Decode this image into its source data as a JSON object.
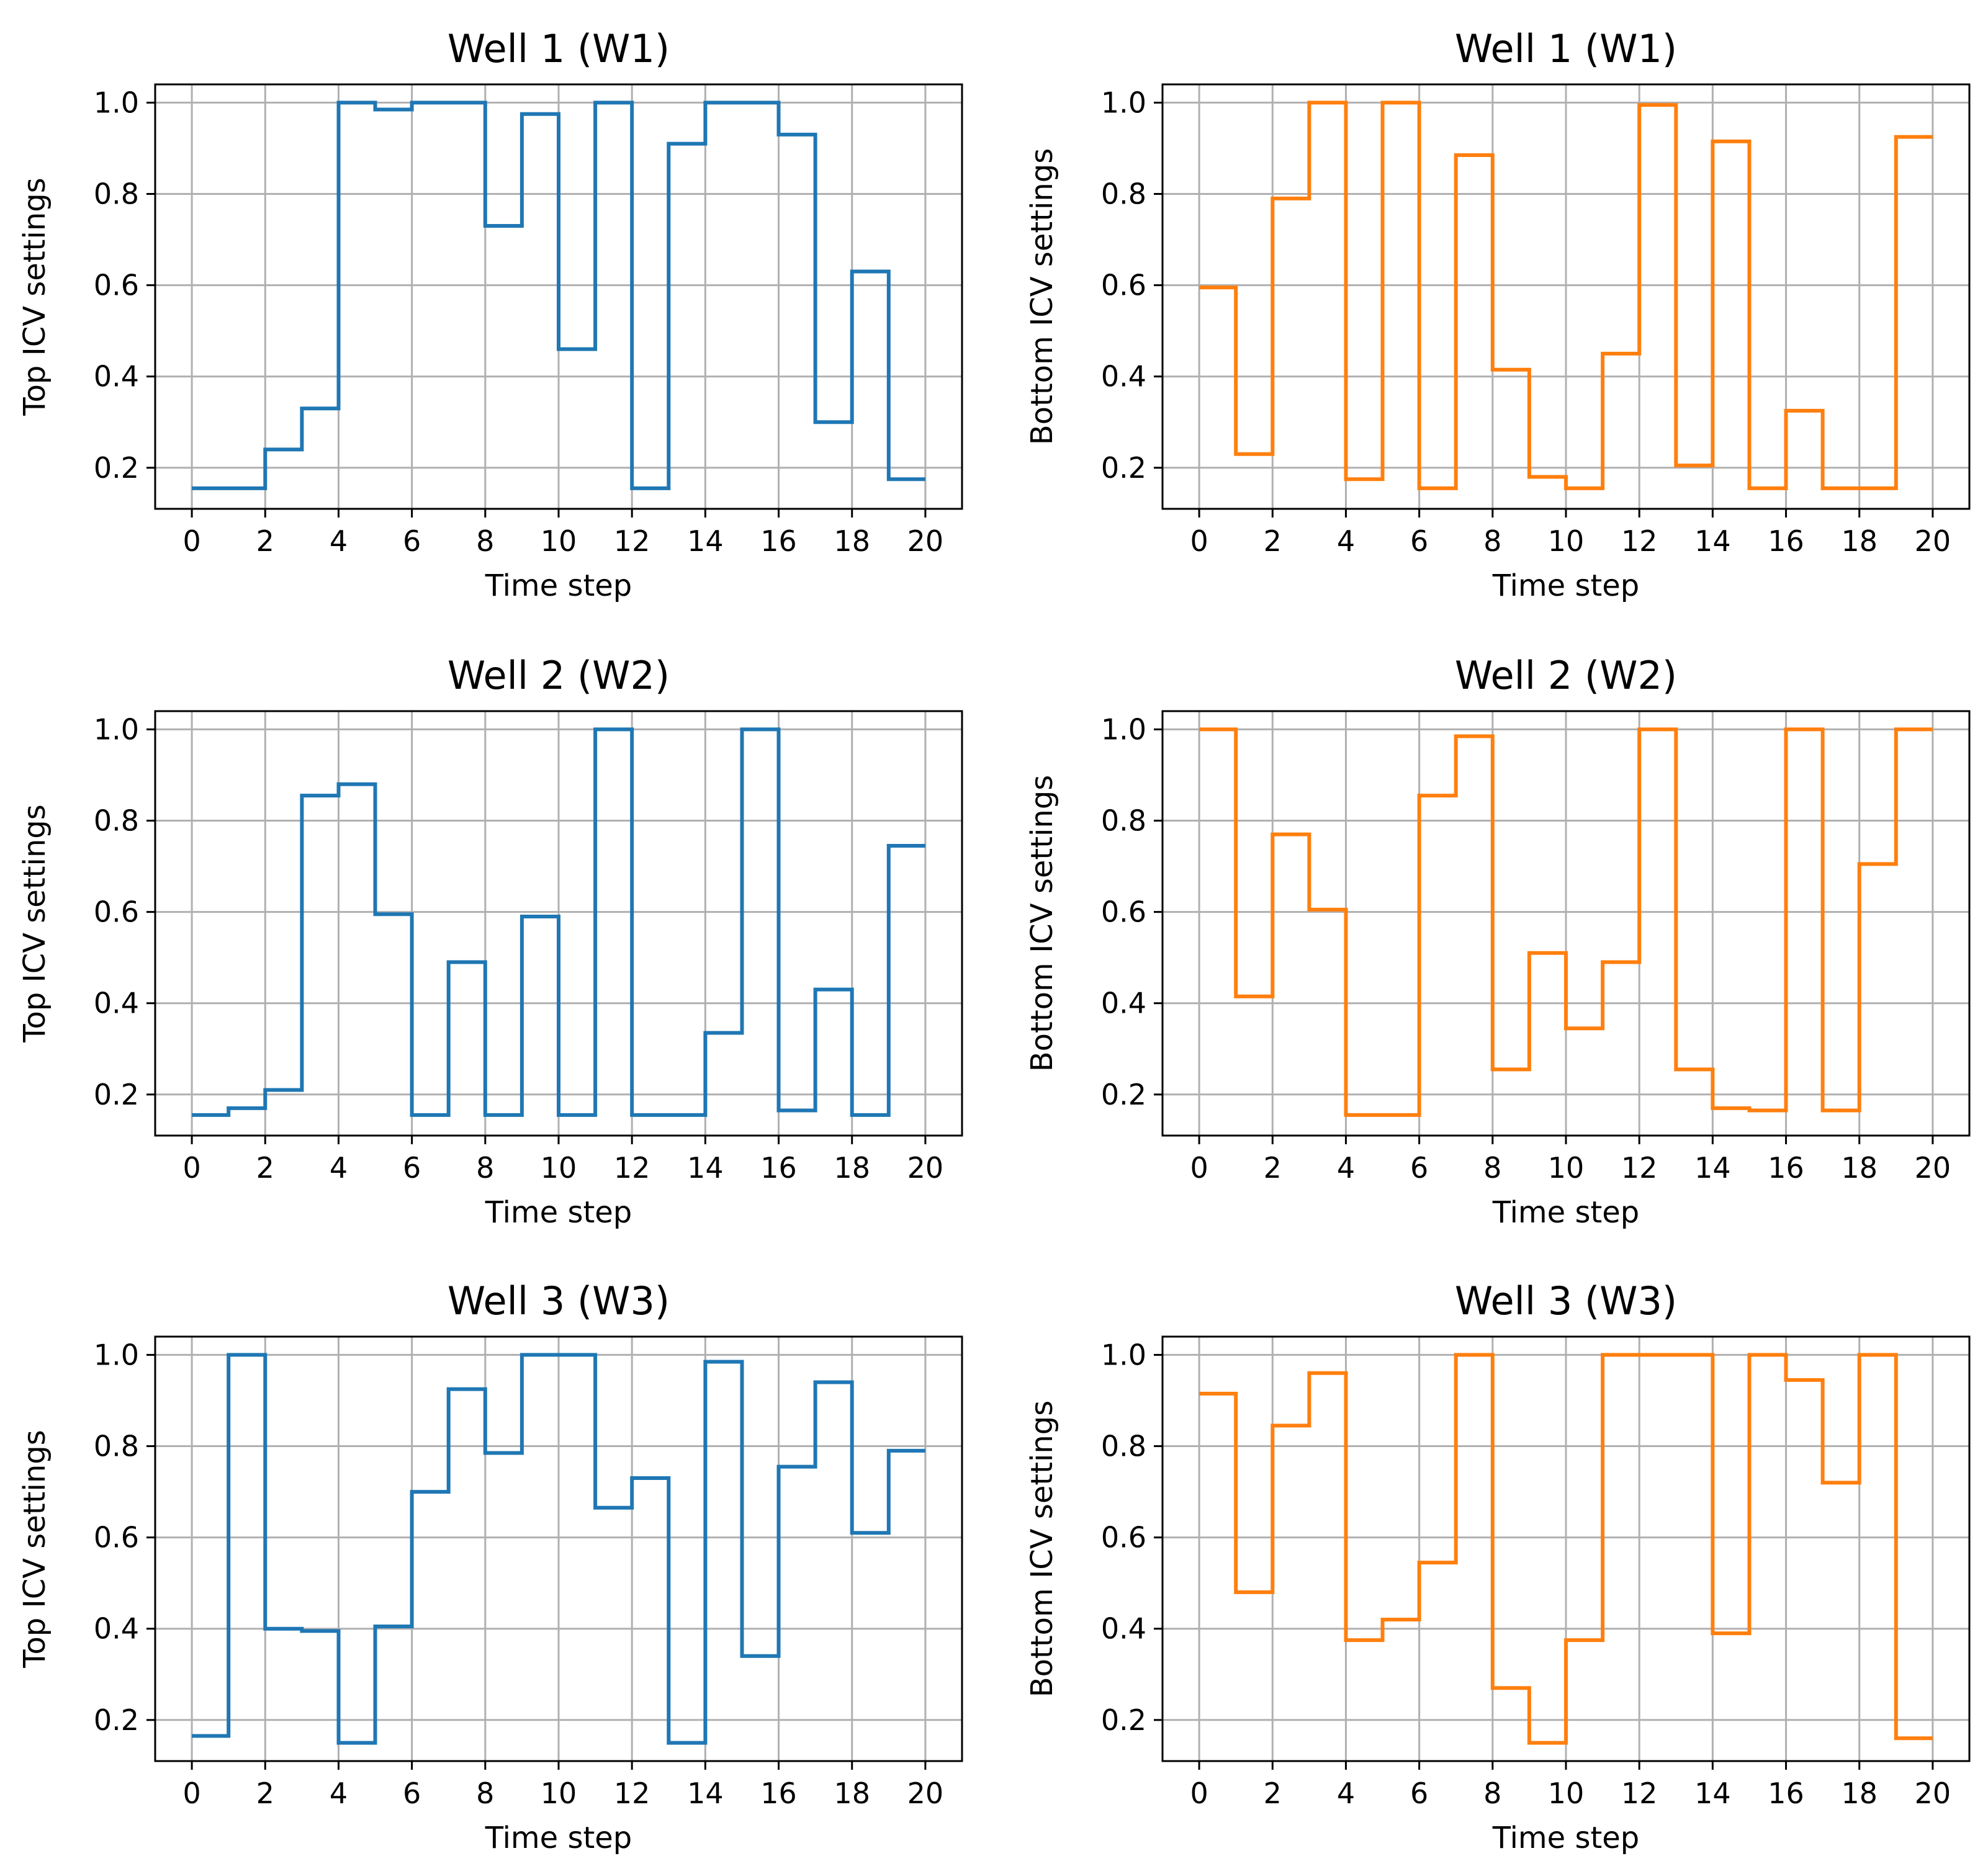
{
  "chart_data": [
    {
      "type": "line",
      "title": "Well 1 (W1)",
      "xlabel": "Time step",
      "ylabel": "Top ICV settings",
      "color": "#1f77b4",
      "xlim": [
        -1,
        21
      ],
      "ylim": [
        0.11,
        1.04
      ],
      "xticks": [
        "0",
        "2",
        "4",
        "6",
        "8",
        "10",
        "12",
        "14",
        "16",
        "18",
        "20"
      ],
      "yticks": [
        "0.2",
        "0.4",
        "0.6",
        "0.8",
        "1.0"
      ],
      "grid": true,
      "series": [
        {
          "x": [
            0,
            1,
            2,
            3,
            4,
            5,
            6,
            7,
            8,
            9,
            10,
            11,
            12,
            13,
            14,
            15,
            16,
            17,
            18,
            19,
            20
          ],
          "values": [
            0.155,
            0.155,
            0.24,
            0.33,
            1.0,
            0.985,
            1.0,
            1.0,
            0.73,
            0.975,
            0.46,
            1.0,
            0.155,
            0.91,
            1.0,
            1.0,
            0.93,
            0.3,
            0.63,
            0.175,
            0.175
          ]
        }
      ]
    },
    {
      "type": "line",
      "title": "Well 1 (W1)",
      "xlabel": "Time step",
      "ylabel": "Bottom ICV settings",
      "color": "#ff7f0e",
      "xlim": [
        -1,
        21
      ],
      "ylim": [
        0.11,
        1.04
      ],
      "xticks": [
        "0",
        "2",
        "4",
        "6",
        "8",
        "10",
        "12",
        "14",
        "16",
        "18",
        "20"
      ],
      "yticks": [
        "0.2",
        "0.4",
        "0.6",
        "0.8",
        "1.0"
      ],
      "grid": true,
      "series": [
        {
          "x": [
            0,
            1,
            2,
            3,
            4,
            5,
            6,
            7,
            8,
            9,
            10,
            11,
            12,
            13,
            14,
            15,
            16,
            17,
            18,
            19,
            20
          ],
          "values": [
            0.595,
            0.23,
            0.79,
            1.0,
            0.175,
            1.0,
            0.155,
            0.885,
            0.415,
            0.18,
            0.155,
            0.45,
            0.995,
            0.205,
            0.915,
            0.155,
            0.325,
            0.155,
            0.155,
            0.925,
            0.925
          ]
        }
      ]
    },
    {
      "type": "line",
      "title": "Well 2 (W2)",
      "xlabel": "Time step",
      "ylabel": "Top ICV settings",
      "color": "#1f77b4",
      "xlim": [
        -1,
        21
      ],
      "ylim": [
        0.11,
        1.04
      ],
      "xticks": [
        "0",
        "2",
        "4",
        "6",
        "8",
        "10",
        "12",
        "14",
        "16",
        "18",
        "20"
      ],
      "yticks": [
        "0.2",
        "0.4",
        "0.6",
        "0.8",
        "1.0"
      ],
      "grid": true,
      "series": [
        {
          "x": [
            0,
            1,
            2,
            3,
            4,
            5,
            6,
            7,
            8,
            9,
            10,
            11,
            12,
            13,
            14,
            15,
            16,
            17,
            18,
            19,
            20
          ],
          "values": [
            0.155,
            0.17,
            0.21,
            0.855,
            0.88,
            0.595,
            0.155,
            0.49,
            0.155,
            0.59,
            0.155,
            1.0,
            0.155,
            0.155,
            0.335,
            1.0,
            0.165,
            0.43,
            0.155,
            0.745,
            0.745
          ]
        }
      ]
    },
    {
      "type": "line",
      "title": "Well 2 (W2)",
      "xlabel": "Time step",
      "ylabel": "Bottom ICV settings",
      "color": "#ff7f0e",
      "xlim": [
        -1,
        21
      ],
      "ylim": [
        0.11,
        1.04
      ],
      "xticks": [
        "0",
        "2",
        "4",
        "6",
        "8",
        "10",
        "12",
        "14",
        "16",
        "18",
        "20"
      ],
      "yticks": [
        "0.2",
        "0.4",
        "0.6",
        "0.8",
        "1.0"
      ],
      "grid": true,
      "series": [
        {
          "x": [
            0,
            1,
            2,
            3,
            4,
            5,
            6,
            7,
            8,
            9,
            10,
            11,
            12,
            13,
            14,
            15,
            16,
            17,
            18,
            19,
            20
          ],
          "values": [
            1.0,
            0.415,
            0.77,
            0.605,
            0.155,
            0.155,
            0.855,
            0.985,
            0.255,
            0.51,
            0.345,
            0.49,
            1.0,
            0.255,
            0.17,
            0.165,
            1.0,
            0.165,
            0.705,
            1.0,
            1.0
          ]
        }
      ]
    },
    {
      "type": "line",
      "title": "Well 3 (W3)",
      "xlabel": "Time step",
      "ylabel": "Top ICV settings",
      "color": "#1f77b4",
      "xlim": [
        -1,
        21
      ],
      "ylim": [
        0.11,
        1.04
      ],
      "xticks": [
        "0",
        "2",
        "4",
        "6",
        "8",
        "10",
        "12",
        "14",
        "16",
        "18",
        "20"
      ],
      "yticks": [
        "0.2",
        "0.4",
        "0.6",
        "0.8",
        "1.0"
      ],
      "grid": true,
      "series": [
        {
          "x": [
            0,
            1,
            2,
            3,
            4,
            5,
            6,
            7,
            8,
            9,
            10,
            11,
            12,
            13,
            14,
            15,
            16,
            17,
            18,
            19,
            20
          ],
          "values": [
            0.165,
            1.0,
            0.4,
            0.395,
            0.15,
            0.405,
            0.7,
            0.925,
            0.785,
            1.0,
            1.0,
            0.665,
            0.73,
            0.15,
            0.985,
            0.34,
            0.755,
            0.94,
            0.61,
            0.79,
            0.79
          ]
        }
      ]
    },
    {
      "type": "line",
      "title": "Well 3 (W3)",
      "xlabel": "Time step",
      "ylabel": "Bottom ICV settings",
      "color": "#ff7f0e",
      "xlim": [
        -1,
        21
      ],
      "ylim": [
        0.11,
        1.04
      ],
      "xticks": [
        "0",
        "2",
        "4",
        "6",
        "8",
        "10",
        "12",
        "14",
        "16",
        "18",
        "20"
      ],
      "yticks": [
        "0.2",
        "0.4",
        "0.6",
        "0.8",
        "1.0"
      ],
      "grid": true,
      "series": [
        {
          "x": [
            0,
            1,
            2,
            3,
            4,
            5,
            6,
            7,
            8,
            9,
            10,
            11,
            12,
            13,
            14,
            15,
            16,
            17,
            18,
            19,
            20
          ],
          "values": [
            0.915,
            0.48,
            0.845,
            0.96,
            0.375,
            0.42,
            0.545,
            1.0,
            0.27,
            0.15,
            0.375,
            1.0,
            1.0,
            1.0,
            0.39,
            1.0,
            0.945,
            0.72,
            1.0,
            0.16,
            0.16
          ]
        }
      ]
    }
  ]
}
